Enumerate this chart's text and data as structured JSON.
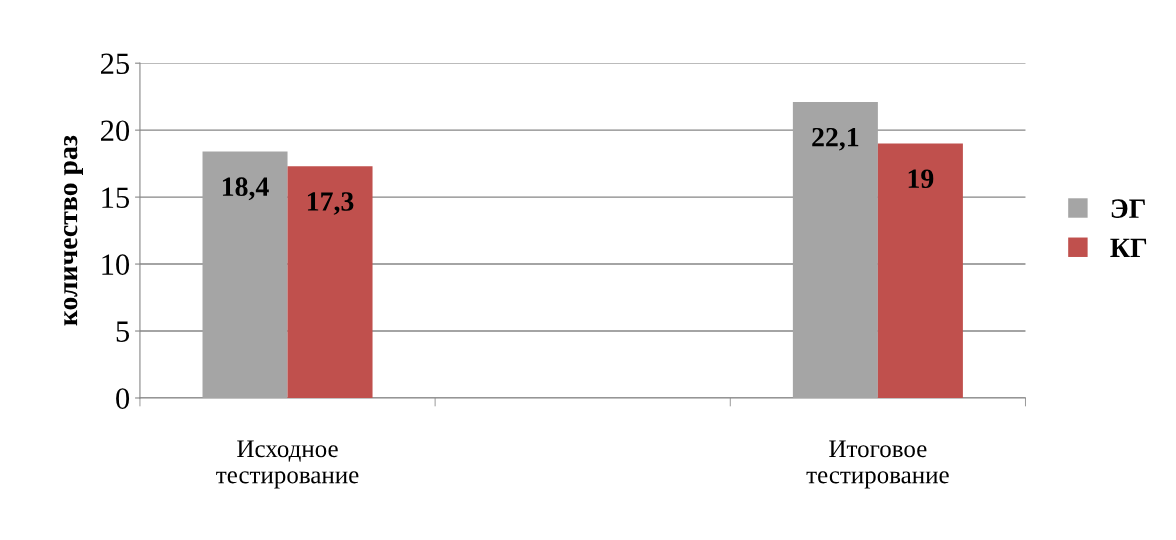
{
  "chart_data": {
    "type": "bar",
    "ylabel": "количество раз",
    "categories": [
      "Исходное тестирование",
      null,
      "Итоговое тестирование"
    ],
    "series": [
      {
        "name": "ЭГ",
        "color": "#a5a5a5",
        "values": [
          18.4,
          null,
          22.1
        ],
        "value_labels": [
          "18,4",
          null,
          "22,1"
        ]
      },
      {
        "name": "КГ",
        "color": "#c0504d",
        "values": [
          17.3,
          null,
          19
        ],
        "value_labels": [
          "17,3",
          null,
          "19"
        ]
      }
    ],
    "ylim": [
      0,
      25
    ],
    "yticks": [
      0,
      5,
      10,
      15,
      20,
      25
    ],
    "grid": "y",
    "legend": "right"
  }
}
